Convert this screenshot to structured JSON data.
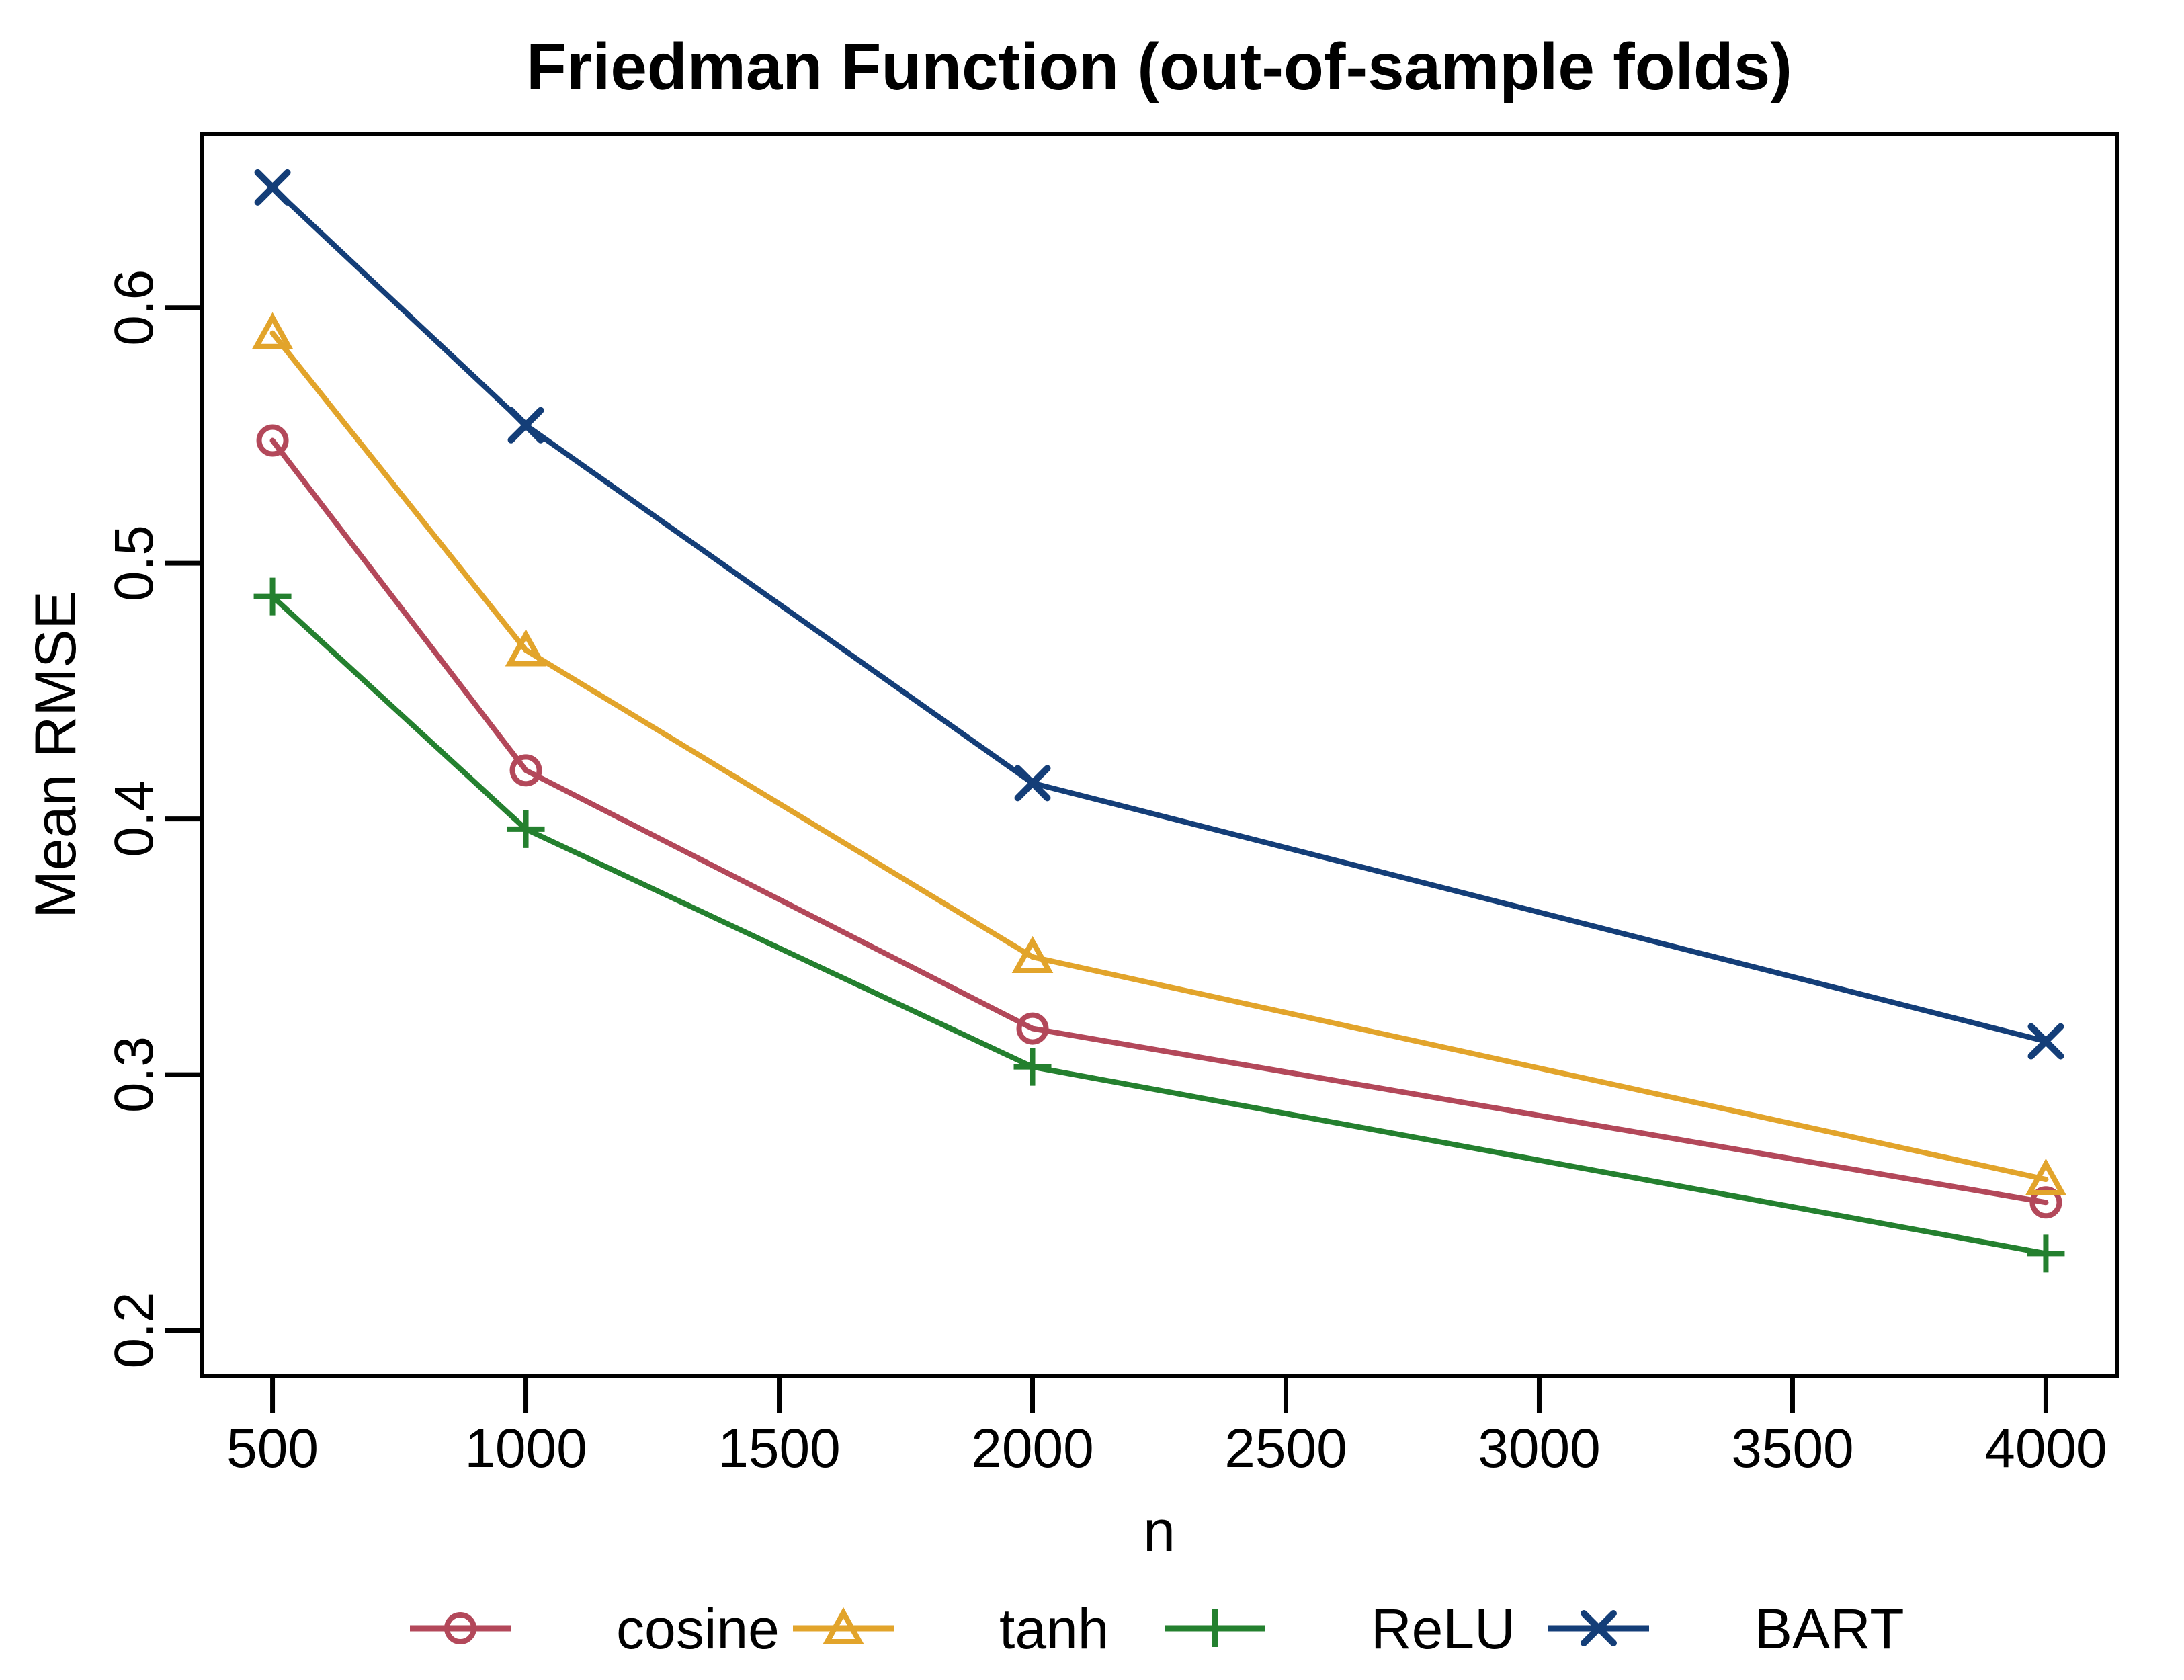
{
  "title": "Friedman Function (out-of-sample folds)",
  "x_axis": {
    "label": "n",
    "tick_labels": [
      "500",
      "1000",
      "1500",
      "2000",
      "2500",
      "3000",
      "3500",
      "4000"
    ]
  },
  "y_axis": {
    "label": "Mean RMSE",
    "tick_labels": [
      "0.2",
      "0.3",
      "0.4",
      "0.5",
      "0.6"
    ]
  },
  "legend": {
    "position": "bottom",
    "entries": [
      "cosine",
      "tanh",
      "ReLU",
      "BART"
    ]
  },
  "chart_data": {
    "type": "line",
    "title": "Friedman Function (out-of-sample folds)",
    "xlabel": "n",
    "ylabel": "Mean RMSE",
    "x": [
      500,
      1000,
      2000,
      4000
    ],
    "x_ticks": [
      500,
      1000,
      1500,
      2000,
      2500,
      3000,
      3500,
      4000
    ],
    "y_ticks": [
      0.2,
      0.3,
      0.4,
      0.5,
      0.6
    ],
    "xlim": [
      360,
      4140
    ],
    "ylim": [
      0.182,
      0.668
    ],
    "grid": false,
    "legend_position": "bottom",
    "series": [
      {
        "name": "cosine",
        "marker": "circle",
        "color": "#B3485A",
        "values": [
          0.548,
          0.419,
          0.318,
          0.25
        ]
      },
      {
        "name": "tanh",
        "marker": "triangle",
        "color": "#E2A42B",
        "values": [
          0.59,
          0.466,
          0.346,
          0.259
        ]
      },
      {
        "name": "ReLU",
        "marker": "plus",
        "color": "#24802F",
        "values": [
          0.487,
          0.396,
          0.303,
          0.23
        ]
      },
      {
        "name": "BART",
        "marker": "x",
        "color": "#143E78",
        "values": [
          0.647,
          0.554,
          0.414,
          0.313
        ]
      }
    ]
  }
}
